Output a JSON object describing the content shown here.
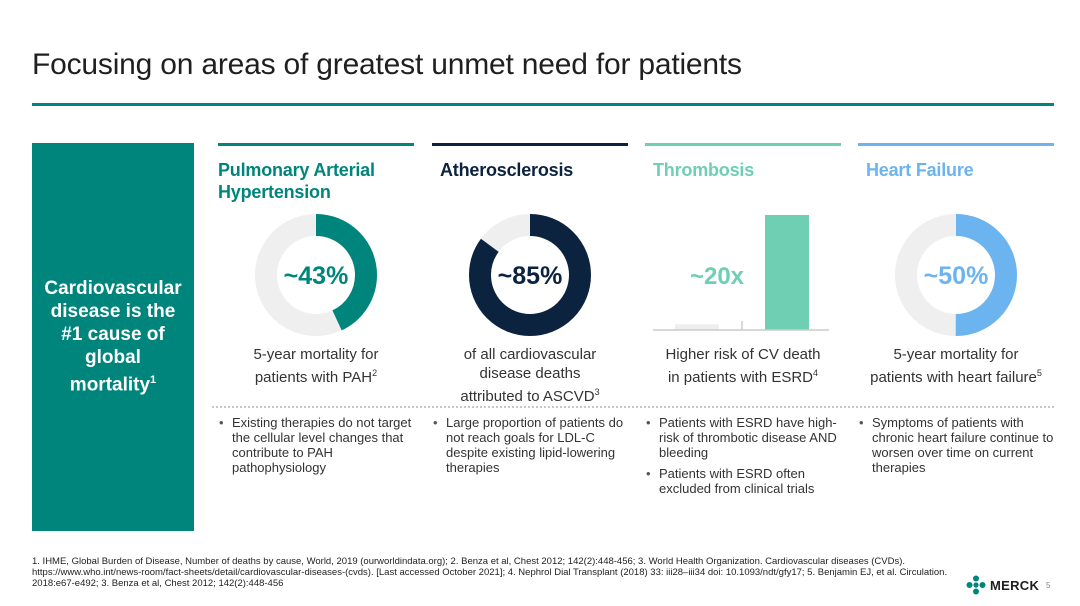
{
  "title": "Focusing on areas of greatest unmet need for patients",
  "left_panel": {
    "line1": "Cardiovascular",
    "line2": "disease is the",
    "line3": "#1 cause of",
    "line4": "global",
    "line5": "mortality",
    "sup": "1"
  },
  "columns": [
    {
      "name_line1": "Pulmonary Arterial",
      "name_line2": "Hypertension",
      "color": "#00857c",
      "stat": "~43%",
      "value_fraction": 0.43,
      "caption_line1": "5-year mortality for",
      "caption_line2": "patients with PAH",
      "caption_sup": "2",
      "bullets": [
        "Existing therapies do not target the cellular level changes that contribute to PAH pathophysiology"
      ]
    },
    {
      "name_line1": "Atherosclerosis",
      "color": "#0c2340",
      "stat": "~85%",
      "value_fraction": 0.85,
      "caption_line1": "of all cardiovascular",
      "caption_line2": "disease deaths",
      "caption_line3": "attributed to ASCVD",
      "caption_sup": "3",
      "bullets": [
        "Large proportion of patients do not reach goals for LDL-C despite existing lipid-lowering therapies"
      ]
    },
    {
      "name_line1": "Thrombosis",
      "color": "#6ecfb2",
      "stat": "~20x",
      "bar_values": [
        1,
        20
      ],
      "caption_line1": "Higher risk of CV death",
      "caption_line2": "in patients with ESRD",
      "caption_sup": "4",
      "bullets": [
        "Patients with ESRD have high-risk of thrombotic disease AND bleeding",
        "Patients with ESRD often excluded from clinical trials"
      ]
    },
    {
      "name_line1": "Heart Failure",
      "color": "#6cb4f0",
      "stat": "~50%",
      "value_fraction": 0.5,
      "caption_line1": "5-year mortality for",
      "caption_line2": "patients with heart failure",
      "caption_sup": "5",
      "bullets": [
        "Symptoms of patients with chronic heart failure continue to worsen over time on current therapies"
      ]
    }
  ],
  "footnote": "1. IHME, Global Burden of Disease, Number of deaths by cause, World, 2019 (ourworldindata.org); 2. Benza et al, Chest 2012; 142(2):448-456; 3. World Health Organization. Cardiovascular diseases (CVDs). https://www.who.int/news-room/fact-sheets/detail/cardiovascular-diseases-(cvds). [Last accessed October 2021]; 4. Nephrol Dial Transplant (2018) 33: iii28–iii34 doi: 10.1093/ndt/gfy17; 5. Benjamin EJ, et al. Circulation. 2018:e67-e492; 3. Benza et al, Chest 2012; 142(2):448-456",
  "logo_text": "MERCK",
  "page_number": "5",
  "colors": {
    "brand_teal": "#00857c",
    "donut_track": "#efefef",
    "bar_baseline_gray": "#cccccc"
  }
}
